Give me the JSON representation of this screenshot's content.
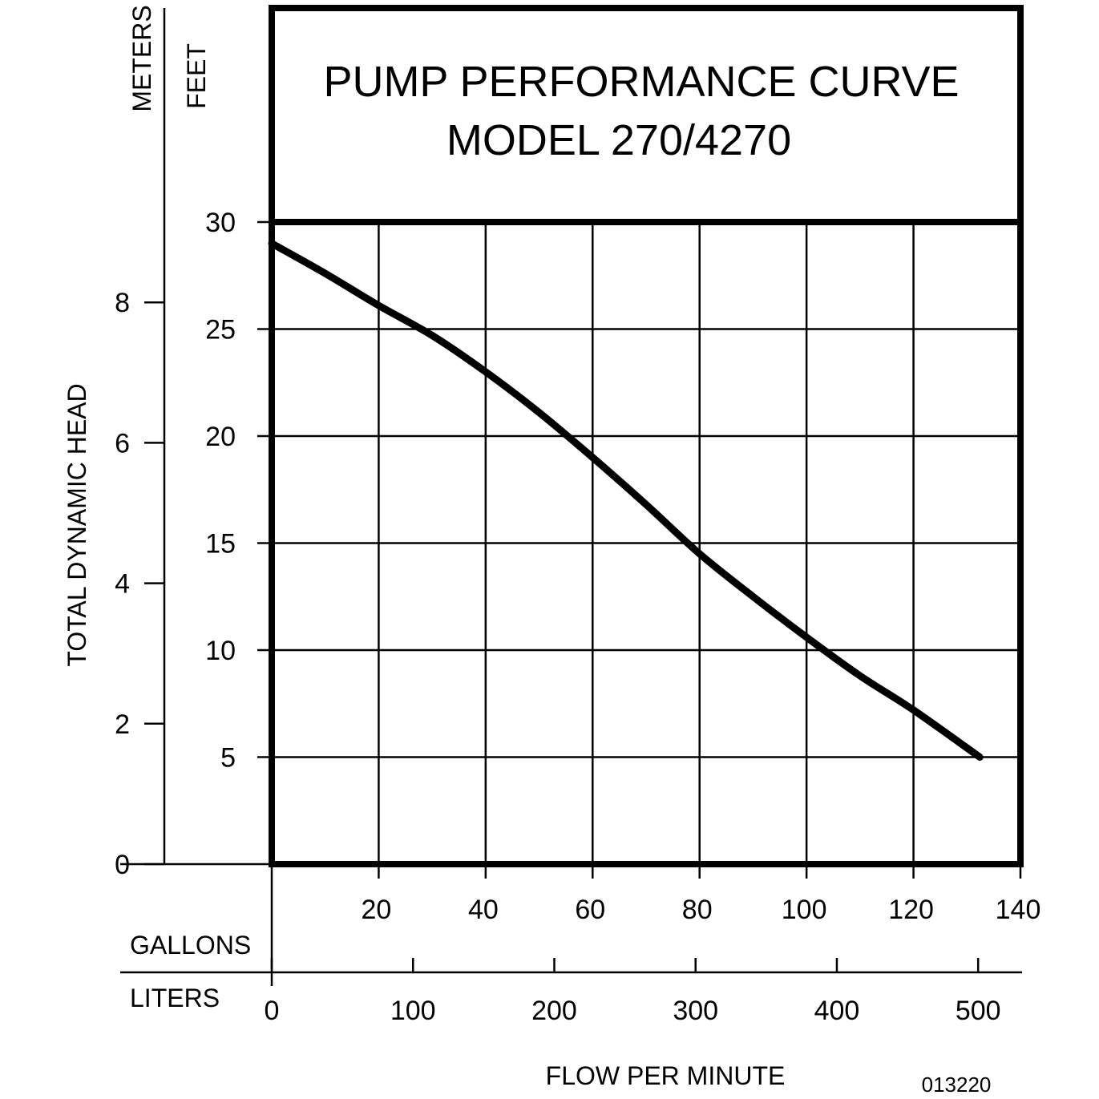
{
  "chart_data": {
    "type": "line",
    "title": "PUMP PERFORMANCE CURVE",
    "subtitle": "MODEL 270/4270",
    "xlabel": "FLOW PER MINUTE",
    "x_unit_primary": "GALLONS",
    "x_unit_secondary": "LITERS",
    "ylabel": "TOTAL DYNAMIC HEAD",
    "y_unit_primary": "FEET",
    "y_unit_secondary": "METERS",
    "xlim": [
      0,
      140
    ],
    "ylim": [
      0,
      30
    ],
    "grid": true,
    "x_ticks_gallons": [
      "20",
      "40",
      "60",
      "80",
      "100",
      "120",
      "140"
    ],
    "x_ticks_liters": [
      "0",
      "100",
      "200",
      "300",
      "400",
      "500"
    ],
    "y_ticks_feet": [
      "5",
      "10",
      "15",
      "20",
      "25",
      "30"
    ],
    "y_ticks_meters": [
      "0",
      "2",
      "4",
      "6",
      "8"
    ],
    "series": [
      {
        "x": [
          0,
          10,
          20,
          30,
          40,
          50,
          60,
          70,
          80,
          90,
          100,
          110,
          120,
          132.4
        ],
        "y": [
          29.0,
          27.6,
          26.1,
          24.7,
          23.0,
          21.1,
          19.0,
          16.8,
          14.5,
          12.5,
          10.6,
          8.8,
          7.2,
          5.0
        ]
      }
    ],
    "annotation": "013220"
  }
}
